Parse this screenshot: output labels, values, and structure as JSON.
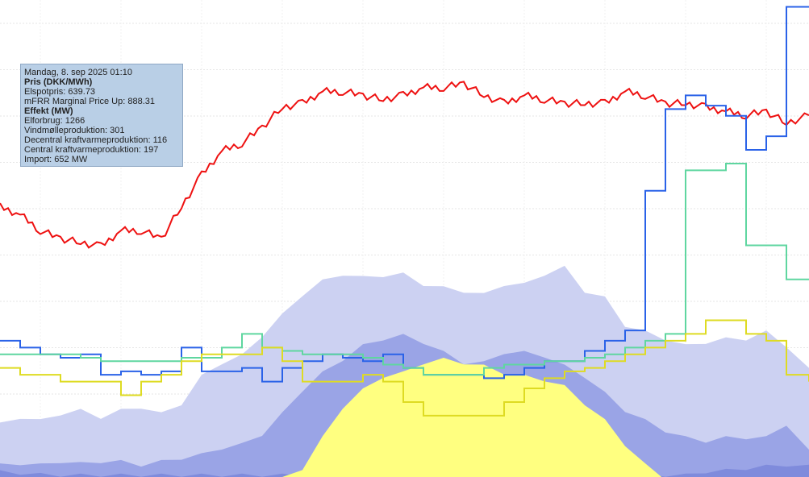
{
  "tooltip": {
    "date": "Mandag, 8. sep 2025 01:10",
    "price_header": "Pris (DKK/MWh)",
    "spot": "Elspotpris: 639.73",
    "mfrr": "mFRR Marginal Price Up: 888.31",
    "power_header": "Effekt (MW)",
    "consumption": "Elforbrug: 1266",
    "wind": "Vindmølleproduktion: 301",
    "decentral": "Decentral kraftvarmeproduktion: 116",
    "central": "Central kraftvarmeproduktion: 197",
    "import": "Import: 652 MW"
  },
  "chart_data": {
    "type": "area",
    "grid": true,
    "colors": {
      "area_outer": "#ccd1f2",
      "area_mid": "#9aa4e6",
      "area_inner": "#7f8bdc",
      "solar": "#ffff80",
      "spot_price": "#ee1111",
      "mfrr_price": "#2a62e8",
      "step_green": "#5fd6a0",
      "step_yellow": "#dedb22"
    },
    "x": [
      0,
      25,
      50,
      75,
      100,
      125,
      150,
      175,
      200,
      225,
      250,
      275,
      300,
      325,
      350,
      375,
      400,
      425,
      450,
      475,
      500,
      525,
      550,
      575,
      600,
      625,
      650,
      675,
      700,
      725,
      750,
      775,
      800,
      825,
      850,
      875,
      900,
      925,
      950,
      975,
      1003
    ],
    "series": [
      {
        "kind": "area",
        "values": [
          80,
          90,
          85,
          95,
          100,
          90,
          100,
          105,
          95,
          110,
          150,
          170,
          180,
          210,
          240,
          270,
          290,
          300,
          295,
          298,
          300,
          285,
          280,
          275,
          270,
          285,
          285,
          300,
          310,
          275,
          265,
          225,
          215,
          205,
          195,
          200,
          205,
          205,
          215,
          195,
          160
        ]
      },
      {
        "kind": "area",
        "values": [
          20,
          22,
          20,
          25,
          22,
          25,
          25,
          20,
          25,
          30,
          35,
          45,
          50,
          65,
          95,
          130,
          155,
          175,
          195,
          205,
          210,
          200,
          185,
          170,
          170,
          185,
          185,
          180,
          165,
          150,
          125,
          100,
          85,
          70,
          60,
          55,
          60,
          60,
          60,
          80,
          40
        ]
      },
      {
        "kind": "area",
        "values": [
          10,
          8,
          6,
          5,
          5,
          5,
          5,
          5,
          5,
          5,
          5,
          5,
          5,
          5,
          5,
          5,
          5,
          5,
          5,
          5,
          5,
          5,
          5,
          5,
          5,
          5,
          5,
          5,
          5,
          5,
          5,
          5,
          5,
          5,
          5,
          10,
          12,
          15,
          18,
          20,
          18
        ]
      },
      {
        "kind": "area",
        "values": [
          0,
          0,
          0,
          0,
          0,
          0,
          0,
          0,
          0,
          0,
          0,
          0,
          0,
          0,
          0,
          15,
          60,
          105,
          130,
          150,
          155,
          170,
          175,
          170,
          165,
          155,
          150,
          145,
          135,
          110,
          85,
          50,
          20,
          0,
          0,
          0,
          0,
          0,
          0,
          0,
          0
        ]
      },
      {
        "kind": "line",
        "values": [
          640,
          630,
          610,
          600,
          595,
          590,
          610,
          610,
          600,
          640,
          680,
          710,
          720,
          740,
          765,
          770,
          785,
          785,
          780,
          775,
          780,
          790,
          790,
          795,
          780,
          770,
          780,
          775,
          770,
          770,
          770,
          785,
          780,
          770,
          770,
          765,
          760,
          755,
          760,
          745,
          755
        ]
      },
      {
        "kind": "step",
        "values": [
          200,
          190,
          180,
          175,
          180,
          150,
          155,
          150,
          155,
          190,
          155,
          155,
          160,
          140,
          160,
          170,
          180,
          175,
          170,
          180,
          160,
          150,
          150,
          150,
          145,
          150,
          160,
          170,
          170,
          185,
          200,
          215,
          420,
          540,
          560,
          545,
          530,
          480,
          500,
          690,
          690
        ]
      },
      {
        "kind": "step",
        "values": [
          180,
          180,
          180,
          180,
          175,
          170,
          170,
          170,
          170,
          175,
          175,
          190,
          210,
          190,
          185,
          180,
          180,
          180,
          175,
          165,
          160,
          150,
          150,
          150,
          160,
          165,
          165,
          170,
          170,
          175,
          180,
          190,
          200,
          210,
          450,
          450,
          460,
          340,
          340,
          290,
          290
        ]
      },
      {
        "kind": "step",
        "values": [
          160,
          150,
          150,
          140,
          140,
          140,
          120,
          140,
          150,
          170,
          180,
          180,
          180,
          190,
          170,
          140,
          140,
          140,
          150,
          140,
          110,
          90,
          90,
          90,
          90,
          110,
          130,
          145,
          155,
          160,
          170,
          180,
          190,
          200,
          210,
          230,
          230,
          210,
          200,
          150,
          140
        ]
      }
    ]
  }
}
